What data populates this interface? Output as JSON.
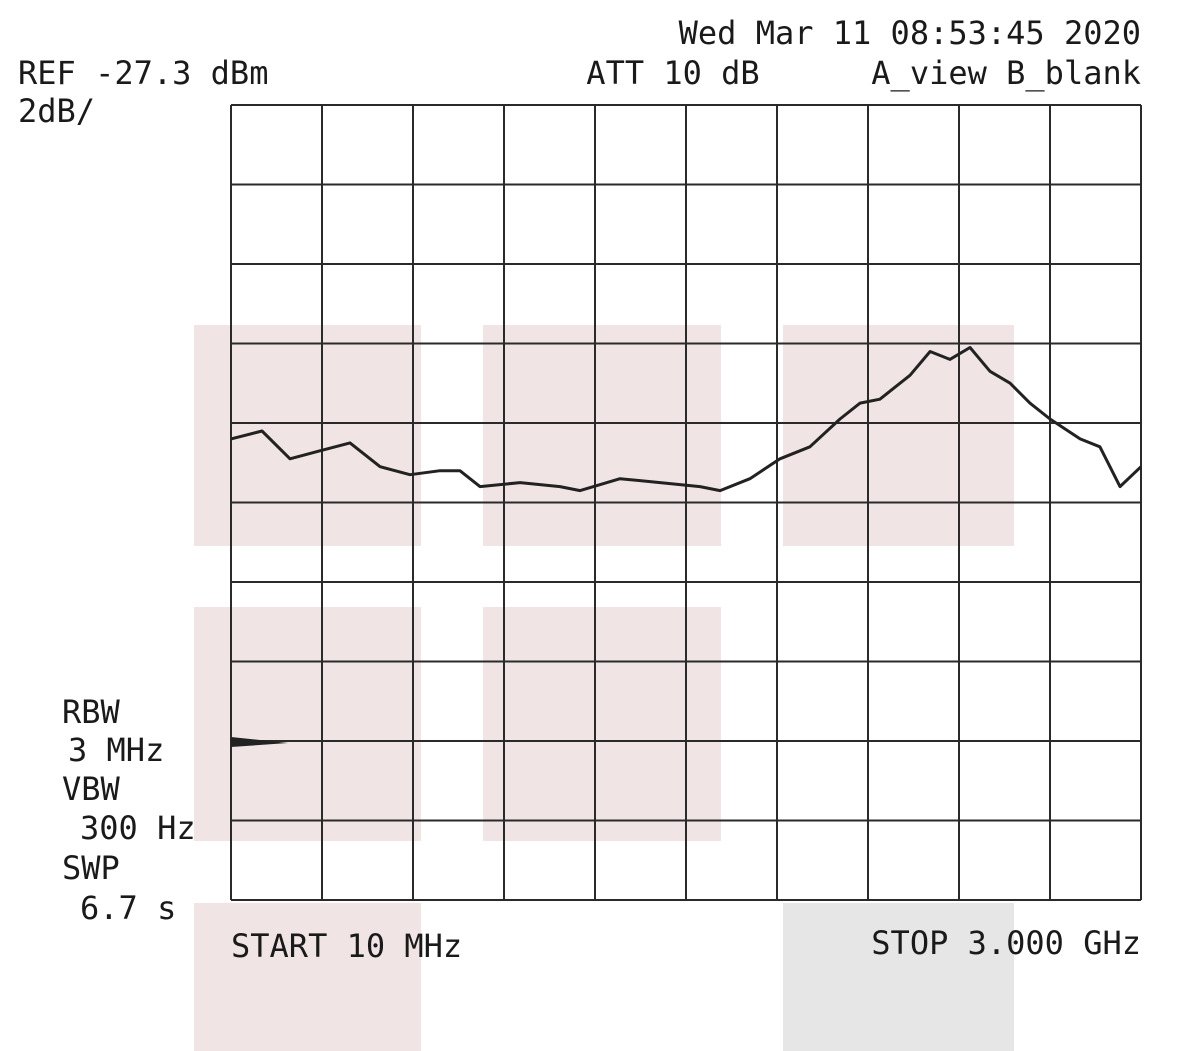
{
  "chart_data": {
    "type": "line",
    "timestamp": "Wed Mar 11 08:53:45 2020",
    "ref_level": "REF -27.3 dBm",
    "attenuation": "ATT 10 dB",
    "trace_modes": "A_view B_blank",
    "scale": "2dB/",
    "rbw_label": "RBW",
    "rbw_value": "3 MHz",
    "vbw_label": "VBW",
    "vbw_value": "300 Hz",
    "swp_label": "SWP",
    "swp_value": "6.7 s",
    "start": "START 10 MHz",
    "stop": "STOP 3.000 GHz",
    "xlim": [
      10,
      3000
    ],
    "ylim": [
      -47.3,
      -27.3
    ],
    "color": "#222222",
    "x": [
      10,
      112,
      204,
      302,
      401,
      500,
      598,
      697,
      762,
      828,
      960,
      1091,
      1157,
      1288,
      1420,
      1551,
      1617,
      1715,
      1814,
      1912,
      2011,
      2077,
      2142,
      2241,
      2307,
      2372,
      2438,
      2504,
      2570,
      2635,
      2701,
      2800,
      2865,
      2931,
      3000
    ],
    "values": [
      -35.7,
      -35.5,
      -36.2,
      -36.0,
      -35.8,
      -36.4,
      -36.6,
      -36.5,
      -36.5,
      -36.9,
      -36.8,
      -36.9,
      -37.0,
      -36.7,
      -36.8,
      -36.9,
      -37.0,
      -36.7,
      -36.2,
      -35.9,
      -35.2,
      -34.8,
      -34.7,
      -34.1,
      -33.5,
      -33.7,
      -33.4,
      -34.0,
      -34.3,
      -34.8,
      -35.2,
      -35.7,
      -35.9,
      -36.9,
      -36.4
    ]
  }
}
